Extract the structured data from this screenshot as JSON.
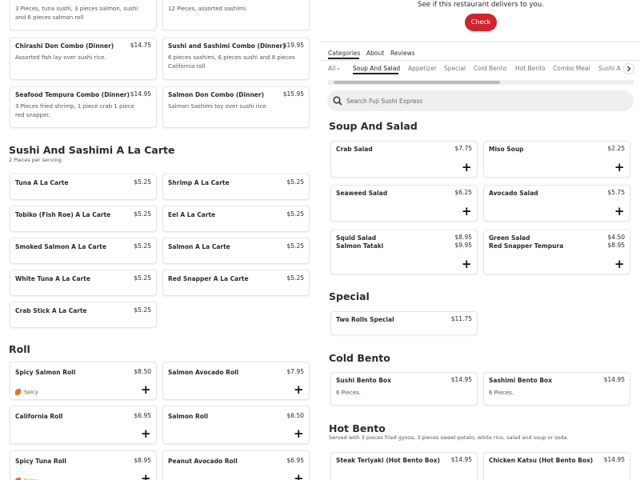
{
  "left": {
    "combos": [
      {
        "description": "3 Pieces, tuna sushi, 3 pieces salmon, sushi and 6 pieces salmon roll"
      },
      {
        "description": "12 Pieces, assorted sashimi."
      },
      {
        "name": "Chirashi Don Combo (Dinner)",
        "price": "$14.75",
        "description": "Assorted fish lay over sushi rice."
      },
      {
        "name": "Sushi and Sashimi Combo (Dinner)",
        "price": "$19.95",
        "description": "6 pieces sashimi, 6 pieces sushi and 8 pieces California roll"
      },
      {
        "name": "Seafood Tempura Combo (Dinner)",
        "price": "$14.95",
        "description": "3 Pieces fried shrimp, 1 piece crab 1 piece red snapper."
      },
      {
        "name": "Salmon Don Combo (Dinner)",
        "price": "$15.95",
        "description": "Salmon Sashimi toy over sushi rice."
      }
    ],
    "a_la_carte": {
      "title": "Sushi And Sashimi A La Carte",
      "subtitle": "2 Pieces per serving.",
      "items": [
        {
          "name": "Tuna A La Carte",
          "price": "$5.25"
        },
        {
          "name": "Shrimp A La Carte",
          "price": "$5.25"
        },
        {
          "name": "Tobiko (Fish Roe) A La Carte",
          "price": "$5.25"
        },
        {
          "name": "Eel A La Carte",
          "price": "$5.25"
        },
        {
          "name": "Smoked Salmon A La Carte",
          "price": "$5.25"
        },
        {
          "name": "Salmon A La Carte",
          "price": "$5.25"
        },
        {
          "name": "White Tuna A La Carte",
          "price": "$5.25"
        },
        {
          "name": "Red Snapper A La Carte",
          "price": "$5.25"
        },
        {
          "name": "Crab Stick A La Carte",
          "price": "$5.25"
        }
      ]
    },
    "roll": {
      "title": "Roll",
      "items": [
        {
          "name": "Spicy Salmon Roll",
          "price": "$8.50",
          "tag": "Spicy"
        },
        {
          "name": "Salmon Avocado Roll",
          "price": "$7.95"
        },
        {
          "name": "California Roll",
          "price": "$6.95"
        },
        {
          "name": "Salmon Roll",
          "price": "$6.50"
        },
        {
          "name": "Spicy Tuna Roll",
          "price": "$8.95",
          "tag": "Spicy"
        },
        {
          "name": "Peanut Avocado Roll",
          "price": "$6.95"
        }
      ]
    }
  },
  "right": {
    "delivery_prompt": "See if this restaurant delivers to you.",
    "check_button": "Check",
    "tabs": [
      "Categories",
      "About",
      "Reviews"
    ],
    "categories": [
      "All",
      "Soup And Salad",
      "Appetizer",
      "Special",
      "Cold Bento",
      "Hot Bento",
      "Combo Meal",
      "Sushi A"
    ],
    "search_placeholder": "Search Fuji Sushi Express",
    "soup_and_salad": {
      "title": "Soup And Salad",
      "items": [
        {
          "name": "Crab Salad",
          "price": "$7.75"
        },
        {
          "name": "Miso Soup",
          "price": "$2.25"
        },
        {
          "name": "Seaweed Salad",
          "price": "$6.25"
        },
        {
          "name": "Avocado Salad",
          "price": "$5.75"
        },
        {
          "name": "Squid Salad",
          "price": "$8.95"
        },
        {
          "name": "Green Salad",
          "price": "$4.50"
        },
        {
          "name": "Salmon Tataki",
          "price": "$9.95"
        },
        {
          "name": "Red Snapper Tempura",
          "price": "$8.95"
        }
      ]
    },
    "special": {
      "title": "Special",
      "items": [
        {
          "name": "Two Rolls Special",
          "price": "$11.75"
        }
      ]
    },
    "cold_bento": {
      "title": "Cold Bento",
      "items": [
        {
          "name": "Sushi Bento Box",
          "price": "$14.95",
          "description": "6 Pieces."
        },
        {
          "name": "Sashimi Bento Box",
          "price": "$14.95",
          "description": "6 Pieces."
        }
      ]
    },
    "hot_bento": {
      "title": "Hot Bento",
      "subtitle": "Served with 3 pieces fried gyoza, 3 pieces sweet potato, white rice, salad and soup or soda.",
      "items": [
        {
          "name": "Steak Teriyaki (Hot Bento Box)",
          "price": "$14.95"
        },
        {
          "name": "Chicken Katsu (Hot Bento Box)",
          "price": "$14.95"
        }
      ]
    }
  }
}
